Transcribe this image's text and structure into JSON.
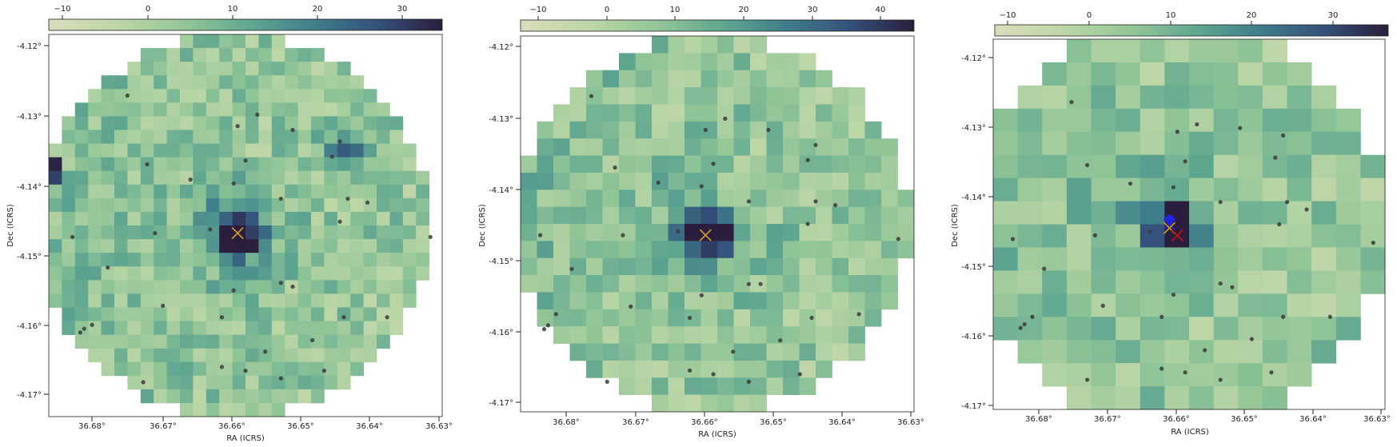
{
  "chart_data": [
    {
      "type": "heatmap",
      "xlabel": "RA (ICRS)",
      "ylabel": "Dec (ICRS)",
      "x_ticks": [
        "36.68°",
        "36.67°",
        "36.66°",
        "36.65°",
        "36.64°",
        "36.63°"
      ],
      "y_ticks": [
        "-4.12°",
        "-4.13°",
        "-4.14°",
        "-4.15°",
        "-4.16°",
        "-4.17°"
      ],
      "colorbar": {
        "ticks": [
          "−10",
          "0",
          "10",
          "20",
          "30"
        ],
        "range": [
          -12,
          37
        ]
      },
      "pixel_grid": {
        "cols": 30,
        "rows": 28
      },
      "sources": [
        [
          0.2,
          0.16
        ],
        [
          0.53,
          0.21
        ],
        [
          0.62,
          0.25
        ],
        [
          0.48,
          0.24
        ],
        [
          0.74,
          0.28
        ],
        [
          0.25,
          0.34
        ],
        [
          0.5,
          0.33
        ],
        [
          0.72,
          0.32
        ],
        [
          0.36,
          0.38
        ],
        [
          0.47,
          0.39
        ],
        [
          0.59,
          0.43
        ],
        [
          0.76,
          0.43
        ],
        [
          0.81,
          0.44
        ],
        [
          0.74,
          0.49
        ],
        [
          0.41,
          0.51
        ],
        [
          0.27,
          0.52
        ],
        [
          0.06,
          0.53
        ],
        [
          0.97,
          0.53
        ],
        [
          0.15,
          0.61
        ],
        [
          0.59,
          0.65
        ],
        [
          0.62,
          0.66
        ],
        [
          0.47,
          0.67
        ],
        [
          0.29,
          0.71
        ],
        [
          0.44,
          0.74
        ],
        [
          0.75,
          0.74
        ],
        [
          0.86,
          0.74
        ],
        [
          0.11,
          0.76
        ],
        [
          0.09,
          0.77
        ],
        [
          0.08,
          0.78
        ],
        [
          0.67,
          0.8
        ],
        [
          0.55,
          0.83
        ],
        [
          0.44,
          0.87
        ],
        [
          0.5,
          0.88
        ],
        [
          0.7,
          0.88
        ],
        [
          0.59,
          0.9
        ],
        [
          0.24,
          0.91
        ]
      ],
      "markers": [
        {
          "color": "#3b2fbf",
          "x": 0.48,
          "y": 0.52
        },
        {
          "color": "#d4a020",
          "x": 0.48,
          "y": 0.52
        }
      ]
    },
    {
      "type": "heatmap",
      "xlabel": "RA (ICRS)",
      "ylabel": "Dec (ICRS)",
      "x_ticks": [
        "36.68°",
        "36.67°",
        "36.66°",
        "36.65°",
        "36.64°",
        "36.63°"
      ],
      "y_ticks": [
        "-4.12°",
        "-4.13°",
        "-4.14°",
        "-4.15°",
        "-4.16°",
        "-4.17°"
      ],
      "colorbar": {
        "ticks": [
          "−10",
          "0",
          "10",
          "20",
          "30",
          "40"
        ],
        "range": [
          -13,
          45
        ]
      },
      "pixel_grid": {
        "cols": 24,
        "rows": 22
      },
      "sources": [
        [
          0.18,
          0.16
        ],
        [
          0.52,
          0.22
        ],
        [
          0.63,
          0.25
        ],
        [
          0.47,
          0.25
        ],
        [
          0.75,
          0.29
        ],
        [
          0.24,
          0.35
        ],
        [
          0.49,
          0.34
        ],
        [
          0.73,
          0.33
        ],
        [
          0.35,
          0.39
        ],
        [
          0.46,
          0.4
        ],
        [
          0.58,
          0.44
        ],
        [
          0.75,
          0.44
        ],
        [
          0.8,
          0.45
        ],
        [
          0.73,
          0.5
        ],
        [
          0.4,
          0.52
        ],
        [
          0.26,
          0.53
        ],
        [
          0.05,
          0.53
        ],
        [
          0.96,
          0.54
        ],
        [
          0.13,
          0.62
        ],
        [
          0.58,
          0.66
        ],
        [
          0.61,
          0.66
        ],
        [
          0.46,
          0.69
        ],
        [
          0.28,
          0.72
        ],
        [
          0.43,
          0.75
        ],
        [
          0.74,
          0.75
        ],
        [
          0.86,
          0.74
        ],
        [
          0.09,
          0.74
        ],
        [
          0.07,
          0.77
        ],
        [
          0.06,
          0.78
        ],
        [
          0.66,
          0.81
        ],
        [
          0.54,
          0.84
        ],
        [
          0.43,
          0.89
        ],
        [
          0.49,
          0.9
        ],
        [
          0.71,
          0.9
        ],
        [
          0.58,
          0.92
        ],
        [
          0.22,
          0.92
        ]
      ],
      "markers": [
        {
          "color": "#3b2fbf",
          "x": 0.47,
          "y": 0.53
        },
        {
          "color": "#d4a020",
          "x": 0.47,
          "y": 0.53
        }
      ]
    },
    {
      "type": "heatmap",
      "xlabel": "RA (ICRS)",
      "ylabel": "Dec (ICRS)",
      "x_ticks": [
        "36.68°",
        "36.67°",
        "36.66°",
        "36.65°",
        "36.64°",
        "36.63°"
      ],
      "y_ticks": [
        "-4.12°",
        "-4.13°",
        "-4.14°",
        "-4.15°",
        "-4.16°",
        "-4.17°"
      ],
      "colorbar": {
        "ticks": [
          "−10",
          "0",
          "10",
          "20",
          "30"
        ],
        "range": [
          -12,
          37
        ]
      },
      "pixel_grid": {
        "cols": 16,
        "rows": 16
      },
      "sources": [
        [
          0.2,
          0.17
        ],
        [
          0.52,
          0.23
        ],
        [
          0.63,
          0.24
        ],
        [
          0.47,
          0.25
        ],
        [
          0.74,
          0.26
        ],
        [
          0.24,
          0.34
        ],
        [
          0.49,
          0.33
        ],
        [
          0.72,
          0.32
        ],
        [
          0.35,
          0.39
        ],
        [
          0.46,
          0.4
        ],
        [
          0.58,
          0.44
        ],
        [
          0.75,
          0.44
        ],
        [
          0.8,
          0.46
        ],
        [
          0.73,
          0.5
        ],
        [
          0.4,
          0.52
        ],
        [
          0.26,
          0.53
        ],
        [
          0.05,
          0.54
        ],
        [
          0.97,
          0.55
        ],
        [
          0.13,
          0.62
        ],
        [
          0.58,
          0.66
        ],
        [
          0.61,
          0.67
        ],
        [
          0.46,
          0.69
        ],
        [
          0.28,
          0.72
        ],
        [
          0.43,
          0.75
        ],
        [
          0.74,
          0.75
        ],
        [
          0.86,
          0.75
        ],
        [
          0.1,
          0.75
        ],
        [
          0.08,
          0.77
        ],
        [
          0.07,
          0.78
        ],
        [
          0.66,
          0.81
        ],
        [
          0.54,
          0.84
        ],
        [
          0.43,
          0.89
        ],
        [
          0.49,
          0.9
        ],
        [
          0.71,
          0.9
        ],
        [
          0.58,
          0.92
        ],
        [
          0.24,
          0.92
        ]
      ],
      "markers": [
        {
          "color": "#2222dd",
          "x": 0.45,
          "y": 0.5
        },
        {
          "color": "#d4a020",
          "x": 0.45,
          "y": 0.51
        },
        {
          "color": "#cc1111",
          "x": 0.47,
          "y": 0.53
        }
      ]
    }
  ]
}
